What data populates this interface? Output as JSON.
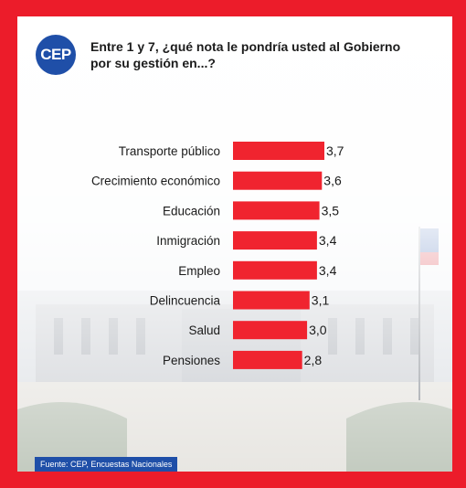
{
  "logo": {
    "text": "CEP"
  },
  "question": "Entre 1 y 7, ¿qué nota le pondría usted al Gobierno por su gestión en...?",
  "source": "Fuente: CEP, Encuestas Nacionales",
  "colors": {
    "frame": "#ec1c2a",
    "bar": "#f0242f",
    "logo": "#1f4fa8",
    "source_bg": "#1f4fa8"
  },
  "chart_data": {
    "type": "bar",
    "orientation": "horizontal",
    "categories": [
      "Transporte público",
      "Crecimiento económico",
      "Educación",
      "Inmigración",
      "Empleo",
      "Delincuencia",
      "Salud",
      "Pensiones"
    ],
    "values": [
      3.7,
      3.6,
      3.5,
      3.4,
      3.4,
      3.1,
      3.0,
      2.8
    ],
    "value_labels": [
      "3,7",
      "3,6",
      "3,5",
      "3,4",
      "3,4",
      "3,1",
      "3,0",
      "2,8"
    ],
    "xlim": [
      0,
      3.7
    ],
    "grid": false,
    "legend": "none"
  }
}
